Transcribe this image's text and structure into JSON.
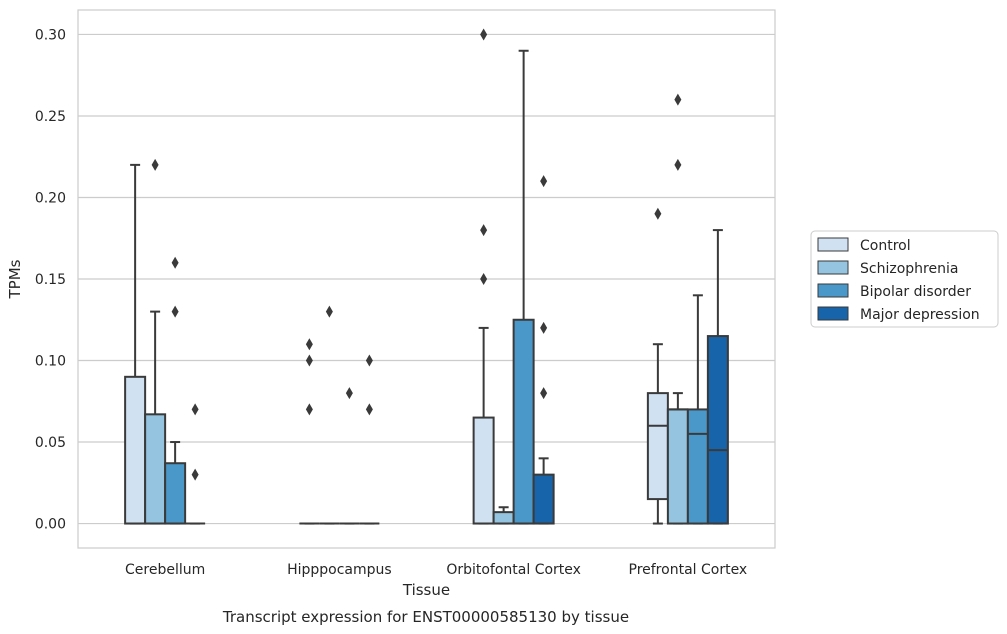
{
  "chart_data": {
    "type": "box",
    "caption": "Transcript expression for ENST00000585130 by tissue",
    "xlabel": "Tissue",
    "ylabel": "TPMs",
    "ylim": [
      -0.015,
      0.315
    ],
    "yticks": [
      "0.00",
      "0.05",
      "0.10",
      "0.15",
      "0.20",
      "0.25",
      "0.30"
    ],
    "ytick_values": [
      0.0,
      0.05,
      0.1,
      0.15,
      0.2,
      0.25,
      0.3
    ],
    "grid": "horizontal",
    "legend_position": "right",
    "categories": [
      "Cerebellum",
      "Hipppocampus",
      "Orbitofontal Cortex",
      "Prefrontal Cortex"
    ],
    "series": [
      {
        "name": "Control",
        "color": "#d0e1f2",
        "boxes": [
          {
            "q1": 0.0,
            "median": 0.0,
            "q3": 0.09,
            "whisker_low": 0.0,
            "whisker_high": 0.22,
            "outliers": []
          },
          {
            "q1": 0.0,
            "median": 0.0,
            "q3": 0.0,
            "whisker_low": 0.0,
            "whisker_high": 0.0,
            "outliers": [
              0.07,
              0.1,
              0.11
            ]
          },
          {
            "q1": 0.0,
            "median": 0.0,
            "q3": 0.065,
            "whisker_low": 0.0,
            "whisker_high": 0.12,
            "outliers": [
              0.15,
              0.18,
              0.3
            ]
          },
          {
            "q1": 0.015,
            "median": 0.06,
            "q3": 0.08,
            "whisker_low": 0.0,
            "whisker_high": 0.11,
            "outliers": [
              0.19
            ]
          }
        ]
      },
      {
        "name": "Schizophrenia",
        "color": "#94c4df",
        "boxes": [
          {
            "q1": 0.0,
            "median": 0.0,
            "q3": 0.067,
            "whisker_low": 0.0,
            "whisker_high": 0.13,
            "outliers": [
              0.22
            ]
          },
          {
            "q1": 0.0,
            "median": 0.0,
            "q3": 0.0,
            "whisker_low": 0.0,
            "whisker_high": 0.0,
            "outliers": [
              0.13
            ]
          },
          {
            "q1": 0.0,
            "median": 0.0,
            "q3": 0.007,
            "whisker_low": 0.0,
            "whisker_high": 0.01,
            "outliers": []
          },
          {
            "q1": 0.0,
            "median": 0.07,
            "q3": 0.07,
            "whisker_low": 0.0,
            "whisker_high": 0.08,
            "outliers": [
              0.22,
              0.26
            ]
          }
        ]
      },
      {
        "name": "Bipolar disorder",
        "color": "#4a98c9",
        "boxes": [
          {
            "q1": 0.0,
            "median": 0.0,
            "q3": 0.037,
            "whisker_low": 0.0,
            "whisker_high": 0.05,
            "outliers": [
              0.13,
              0.16
            ]
          },
          {
            "q1": 0.0,
            "median": 0.0,
            "q3": 0.0,
            "whisker_low": 0.0,
            "whisker_high": 0.0,
            "outliers": [
              0.08
            ]
          },
          {
            "q1": 0.0,
            "median": 0.0,
            "q3": 0.125,
            "whisker_low": 0.0,
            "whisker_high": 0.29,
            "outliers": []
          },
          {
            "q1": 0.0,
            "median": 0.055,
            "q3": 0.07,
            "whisker_low": 0.0,
            "whisker_high": 0.14,
            "outliers": []
          }
        ]
      },
      {
        "name": "Major depression",
        "color": "#1764ab",
        "boxes": [
          {
            "q1": 0.0,
            "median": 0.0,
            "q3": 0.0,
            "whisker_low": 0.0,
            "whisker_high": 0.0,
            "outliers": [
              0.03,
              0.07
            ]
          },
          {
            "q1": 0.0,
            "median": 0.0,
            "q3": 0.0,
            "whisker_low": 0.0,
            "whisker_high": 0.0,
            "outliers": [
              0.07,
              0.1
            ]
          },
          {
            "q1": 0.0,
            "median": 0.0,
            "q3": 0.03,
            "whisker_low": 0.0,
            "whisker_high": 0.04,
            "outliers": [
              0.08,
              0.12,
              0.21
            ]
          },
          {
            "q1": 0.0,
            "median": 0.045,
            "q3": 0.115,
            "whisker_low": 0.0,
            "whisker_high": 0.18,
            "outliers": []
          }
        ]
      }
    ]
  }
}
